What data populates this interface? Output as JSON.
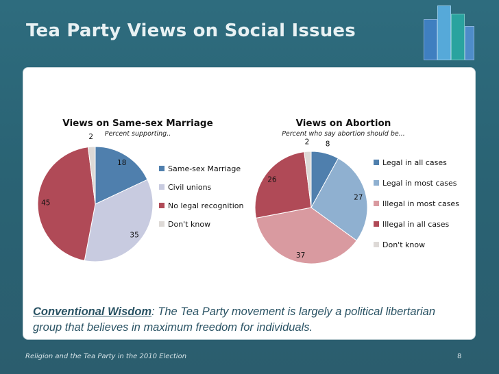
{
  "slide": {
    "title": "Tea Party Views on Social Issues",
    "footer": "Religion and the Tea Party in the 2010 Election",
    "page_number": "8"
  },
  "logo": {
    "bar_colors": [
      "#3f7fc0",
      "#56a9d9",
      "#2aa39f",
      "#4e8cc9"
    ]
  },
  "conventional_wisdom": {
    "label": "Conventional Wisdom",
    "separator": ":",
    "text": " The Tea Party movement is largely a political libertarian group that believes in maximum freedom for individuals."
  },
  "chart_data": [
    {
      "type": "pie",
      "title": "Views on Same-sex Marriage",
      "subtitle": "Percent supporting..",
      "legend_position": "right",
      "categories": [
        "Same-sex Marriage",
        "Civil unions",
        "No legal recognition",
        "Don't know"
      ],
      "values": [
        18,
        35,
        45,
        2
      ],
      "colors": [
        "#4f7fad",
        "#c8cbe0",
        "#b04a57",
        "#ddd9d6"
      ]
    },
    {
      "type": "pie",
      "title": "Views on Abortion",
      "subtitle": "Percent who say abortion should be...",
      "legend_position": "right",
      "categories": [
        "Legal in all cases",
        "Legal in most cases",
        "Illegal in most cases",
        "Illegal in all cases",
        "Don't know"
      ],
      "values": [
        8,
        27,
        37,
        26,
        2
      ],
      "colors": [
        "#4f7fad",
        "#8fb0d0",
        "#d99aa0",
        "#b04a57",
        "#ddd9d6"
      ]
    }
  ]
}
